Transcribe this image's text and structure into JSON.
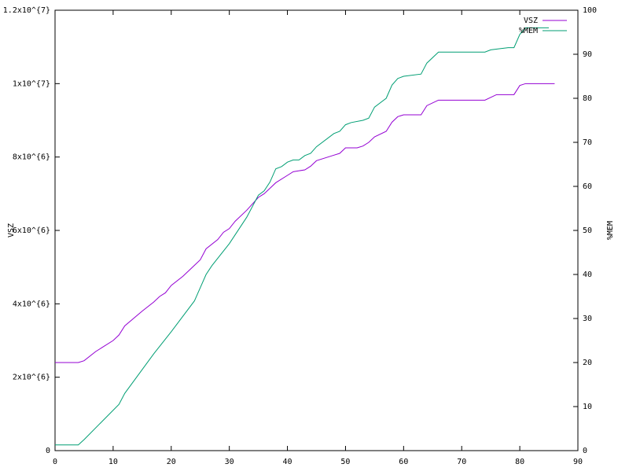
{
  "chart_data": {
    "type": "line",
    "xlim": [
      0,
      90
    ],
    "xticks": [
      0,
      10,
      20,
      30,
      40,
      50,
      60,
      70,
      80,
      90
    ],
    "ylim": [
      0,
      12000000
    ],
    "yticks": [
      0,
      {
        "value": 2000000,
        "label": "2x10^{6}"
      },
      {
        "value": 4000000,
        "label": "4x10^{6}"
      },
      {
        "value": 6000000,
        "label": "6x10^{6}"
      },
      {
        "value": 8000000,
        "label": "8x10^{6}"
      },
      {
        "value": 10000000,
        "label": "1x10^{7}"
      },
      {
        "value": 12000000,
        "label": "1.2x10^{7}"
      }
    ],
    "y2lim": [
      0,
      100
    ],
    "y2ticks": [
      0,
      10,
      20,
      30,
      40,
      50,
      60,
      70,
      80,
      90,
      100
    ],
    "ylabel": "VSZ",
    "y2label": "%MEM",
    "legend": "top-right",
    "series": [
      {
        "name": "VSZ",
        "color": "#9400d3",
        "x": [
          0,
          4,
          5,
          7,
          8,
          10,
          11,
          12,
          15,
          17,
          18,
          19,
          20,
          22,
          24,
          25,
          26,
          28,
          29,
          30,
          31,
          33,
          35,
          36,
          37,
          38,
          40,
          41,
          43,
          44,
          45,
          48,
          49,
          50,
          52,
          53,
          54,
          55,
          57,
          58,
          59,
          60,
          63,
          64,
          66,
          74,
          76,
          79,
          80,
          81,
          86
        ],
        "values": [
          2400000,
          2400000,
          2450000,
          2700000,
          2800000,
          3000000,
          3150000,
          3400000,
          3800000,
          4050000,
          4200000,
          4300000,
          4500000,
          4750000,
          5050000,
          5200000,
          5500000,
          5750000,
          5950000,
          6050000,
          6250000,
          6550000,
          6900000,
          7000000,
          7150000,
          7300000,
          7500000,
          7600000,
          7650000,
          7750000,
          7900000,
          8050000,
          8100000,
          8250000,
          8250000,
          8300000,
          8400000,
          8550000,
          8700000,
          8950000,
          9100000,
          9150000,
          9150000,
          9400000,
          9550000,
          9550000,
          9700000,
          9700000,
          9950000,
          10000000,
          10000000
        ]
      },
      {
        "name": "%MEM",
        "color": "#009e73",
        "axis": "y2",
        "x": [
          0,
          4,
          5,
          8,
          11,
          12,
          17,
          20,
          24,
          25,
          26,
          27,
          30,
          33,
          35,
          36,
          37,
          38,
          39,
          40,
          41,
          42,
          43,
          44,
          45,
          48,
          49,
          50,
          51,
          53,
          54,
          55,
          57,
          58,
          59,
          60,
          63,
          64,
          66,
          74,
          75,
          78,
          79,
          80,
          81,
          85
        ],
        "values": [
          1.3,
          1.3,
          2.5,
          6.5,
          10.5,
          13,
          22,
          27,
          34,
          37,
          40,
          42,
          47,
          53,
          58,
          59,
          61,
          64,
          64.5,
          65.5,
          66,
          66,
          67,
          67.5,
          69,
          72,
          72.5,
          74,
          74.5,
          75,
          75.5,
          78,
          80,
          83,
          84.5,
          85,
          85.5,
          88,
          90.5,
          90.5,
          91,
          91.5,
          91.5,
          94.5,
          96,
          96
        ]
      }
    ]
  }
}
